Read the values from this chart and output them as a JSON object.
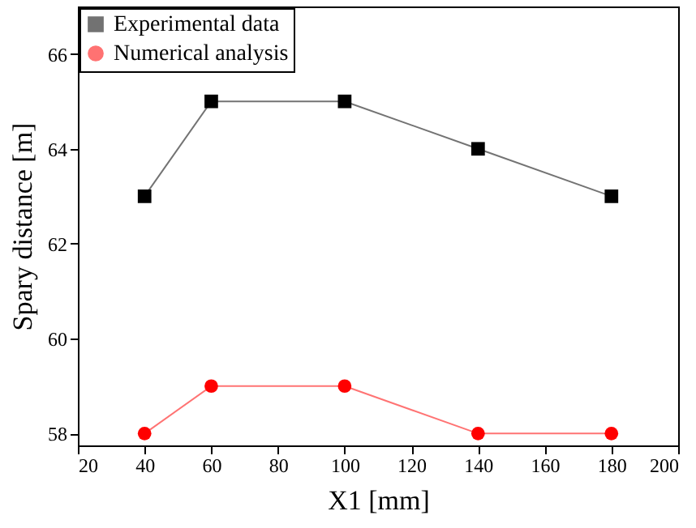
{
  "chart_data": {
    "type": "line",
    "xlabel": "X1 [mm]",
    "ylabel": "Spary distance [m]",
    "x": [
      40,
      60,
      100,
      140,
      180
    ],
    "series": [
      {
        "name": "Experimental data",
        "color": "#000000",
        "marker": "square",
        "values": [
          63,
          65,
          65,
          64,
          63
        ]
      },
      {
        "name": "Numerical analysis",
        "color": "#ff0000",
        "marker": "circle",
        "values": [
          58,
          59,
          59,
          58,
          58
        ]
      }
    ],
    "xlim": [
      20,
      200
    ],
    "xticks": [
      20,
      40,
      60,
      80,
      100,
      120,
      140,
      160,
      180,
      200
    ],
    "ylim": [
      57.75,
      67
    ],
    "yticks": [
      58,
      60,
      62,
      64,
      66
    ],
    "grid": false,
    "legend": "top left"
  }
}
